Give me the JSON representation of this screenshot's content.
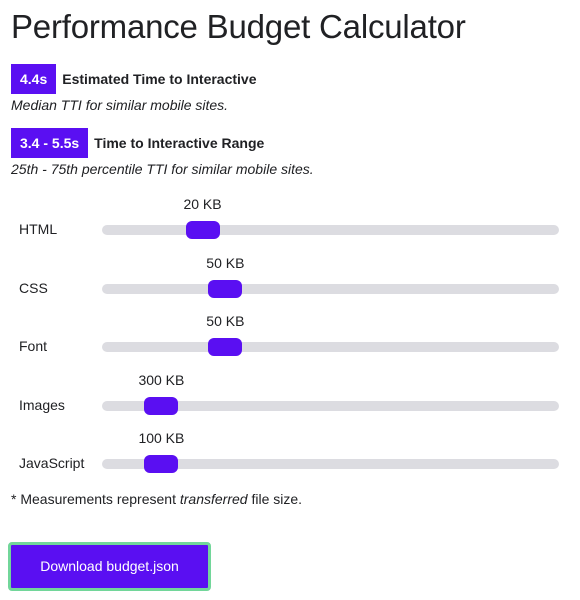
{
  "page": {
    "title": "Performance Budget Calculator"
  },
  "metrics": {
    "tti": {
      "badge": "4.4s",
      "label": "Estimated Time to Interactive",
      "description": "Median TTI for similar mobile sites."
    },
    "range": {
      "badge": "3.4 - 5.5s",
      "label": "Time to Interactive Range",
      "description": "25th - 75th percentile TTI for similar mobile sites."
    }
  },
  "sliders": [
    {
      "label": "HTML",
      "value_label": "20 KB",
      "fraction": 0.22
    },
    {
      "label": "CSS",
      "value_label": "50 KB",
      "fraction": 0.27
    },
    {
      "label": "Font",
      "value_label": "50 KB",
      "fraction": 0.27
    },
    {
      "label": "Images",
      "value_label": "300 KB",
      "fraction": 0.13
    },
    {
      "label": "JavaScript",
      "value_label": "100 KB",
      "fraction": 0.13
    }
  ],
  "note": {
    "prefix": "* Measurements represent",
    "emphasis": "transferred",
    "suffix": "file size."
  },
  "download_button": {
    "label": "Download budget.json"
  },
  "colors": {
    "accent": "#5a0ff2",
    "track": "#dcdce1",
    "focus_ring": "#72d69a"
  }
}
